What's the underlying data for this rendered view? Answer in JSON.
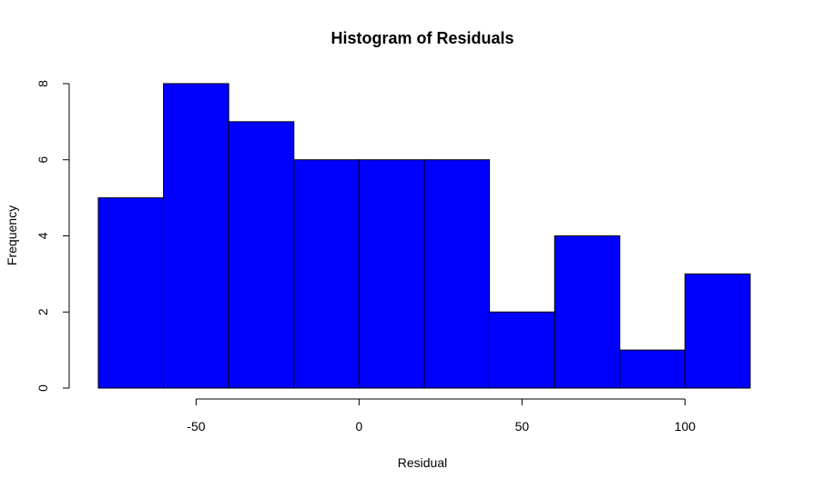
{
  "chart_data": {
    "type": "bar",
    "title": "Histogram of Residuals",
    "xlabel": "Residual",
    "ylabel": "Frequency",
    "bin_edges": [
      -80,
      -60,
      -40,
      -20,
      0,
      20,
      40,
      60,
      80,
      100,
      120
    ],
    "counts": [
      5,
      8,
      7,
      6,
      6,
      6,
      2,
      4,
      1,
      3
    ],
    "xlim": [
      -80,
      120
    ],
    "ylim": [
      0,
      8
    ],
    "x_ticks": [
      -50,
      0,
      50,
      100
    ],
    "y_ticks": [
      0,
      2,
      4,
      6,
      8
    ],
    "bar_color": "#0000FF",
    "border_color": "#000000",
    "grid": false,
    "legend": "none"
  }
}
